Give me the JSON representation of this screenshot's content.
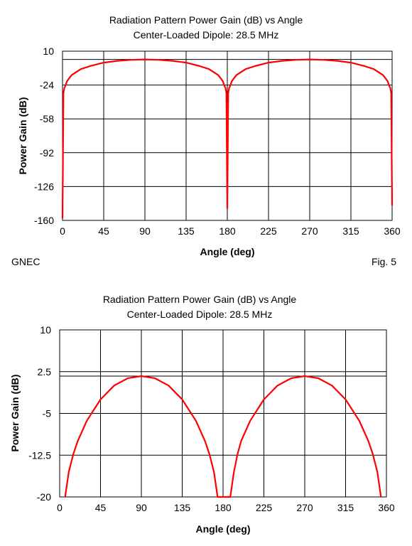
{
  "chart_data": [
    {
      "type": "line",
      "title": "Radiation Pattern Power Gain (dB) vs Angle",
      "subtitle": "Center-Loaded Dipole:  28.5 MHz",
      "xlabel": "Angle (deg)",
      "ylabel": "Power Gain (dB)",
      "xlim": [
        0,
        360
      ],
      "ylim": [
        -160,
        10
      ],
      "xticks": [
        "0",
        "45",
        "90",
        "135",
        "180",
        "225",
        "270",
        "315",
        "360"
      ],
      "yticks": [
        "10",
        "-24",
        "-58",
        "-92",
        "-126",
        "-160"
      ],
      "reference_line_db": 1.7,
      "grid": true,
      "line_color": "#ff0000",
      "series": [
        {
          "x": [
            0,
            1,
            2,
            3,
            5,
            10,
            20,
            30,
            45,
            60,
            75,
            90,
            105,
            120,
            135,
            150,
            160,
            170,
            175,
            177,
            178,
            179,
            180,
            181,
            182,
            183,
            185,
            190,
            200,
            210,
            225,
            240,
            255,
            270,
            285,
            300,
            315,
            330,
            340,
            350,
            355,
            357,
            358,
            359,
            360
          ],
          "y": [
            -158,
            -32,
            -27,
            -25,
            -20,
            -14,
            -8,
            -5,
            -1.5,
            0.3,
            1.3,
            1.7,
            1.3,
            0.3,
            -1.5,
            -5,
            -8,
            -14,
            -20,
            -25,
            -27,
            -32,
            -148,
            -32,
            -27,
            -25,
            -20,
            -14,
            -8,
            -5,
            -1.5,
            0.3,
            1.3,
            1.7,
            1.3,
            0.3,
            -1.5,
            -5,
            -8,
            -14,
            -20,
            -25,
            -27,
            -32,
            -145
          ]
        }
      ],
      "footer_left": "GNEC",
      "footer_right": "Fig. 5"
    },
    {
      "type": "line",
      "title": "Radiation Pattern Power Gain (dB) vs Angle",
      "subtitle": "Center-Loaded Dipole:  28.5 MHz",
      "xlabel": "Angle (deg)",
      "ylabel": "Power Gain (dB)",
      "xlim": [
        0,
        360
      ],
      "ylim": [
        -20,
        10
      ],
      "xticks": [
        "0",
        "45",
        "90",
        "135",
        "180",
        "225",
        "270",
        "315",
        "360"
      ],
      "yticks": [
        "10",
        "2.5",
        "-5",
        "-12.5",
        "-20"
      ],
      "reference_line_db": 1.7,
      "grid": true,
      "line_color": "#ff0000",
      "series": [
        {
          "x": [
            6,
            10,
            15,
            20,
            30,
            45,
            60,
            75,
            90,
            105,
            120,
            135,
            150,
            160,
            165,
            170,
            174,
            188,
            192,
            196,
            200,
            210,
            225,
            240,
            255,
            270,
            285,
            300,
            315,
            330,
            340,
            345,
            350,
            354
          ],
          "y": [
            -20,
            -15.5,
            -12.3,
            -9.9,
            -6.3,
            -2.5,
            0,
            1.3,
            1.7,
            1.3,
            0,
            -2.5,
            -6.3,
            -9.9,
            -12.3,
            -15.5,
            -20,
            -20,
            -15.5,
            -12.3,
            -9.9,
            -6.3,
            -2.5,
            0,
            1.3,
            1.7,
            1.3,
            0,
            -2.5,
            -6.3,
            -9.9,
            -12.3,
            -15.5,
            -20
          ]
        }
      ]
    }
  ]
}
